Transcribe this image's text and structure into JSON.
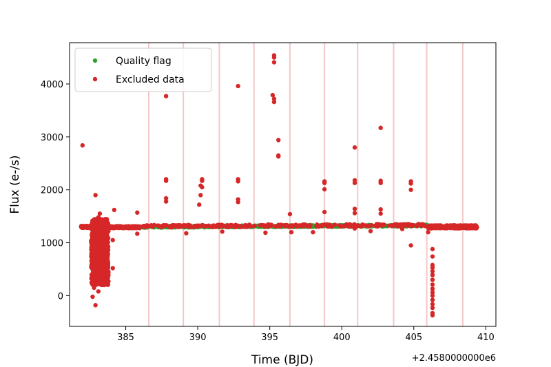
{
  "chart_data": {
    "type": "scatter",
    "title": "",
    "xlabel": "Time (BJD)",
    "ylabel": "Flux (e-/s)",
    "x_offset_label": "+2.4580000000e6",
    "xlim": [
      381.1,
      410.7
    ],
    "ylim": [
      -580,
      4780
    ],
    "x_ticks": [
      385,
      390,
      395,
      400,
      405,
      410
    ],
    "x_tick_labels": [
      "385",
      "390",
      "395",
      "400",
      "405",
      "410"
    ],
    "y_ticks": [
      0,
      1000,
      2000,
      3000,
      4000
    ],
    "y_tick_labels": [
      "0",
      "1000",
      "2000",
      "3000",
      "4000"
    ],
    "grid": false,
    "legend_placement": "upper-left",
    "colors": {
      "quality": "#2ca02c",
      "excluded": "#d62728",
      "vlines": "#f4c7c8"
    },
    "vertical_lines_x": [
      386.6,
      389.0,
      391.5,
      393.9,
      396.4,
      398.8,
      401.1,
      403.6,
      405.9,
      408.4
    ],
    "quality_band": {
      "x_start": 386.0,
      "x_end": 406.0,
      "y_start": 1290,
      "y_end": 1340
    },
    "series": [
      {
        "name": "Quality flag",
        "color": "#2ca02c",
        "points": [
          [
            386.0,
            1300
          ],
          [
            386.5,
            1302
          ],
          [
            387.0,
            1305
          ],
          [
            387.5,
            1303
          ],
          [
            388.0,
            1306
          ],
          [
            388.5,
            1304
          ],
          [
            389.0,
            1306
          ],
          [
            389.5,
            1307
          ],
          [
            390.0,
            1306
          ],
          [
            390.5,
            1308
          ],
          [
            391.0,
            1309
          ],
          [
            391.5,
            1308
          ],
          [
            392.0,
            1310
          ],
          [
            392.5,
            1311
          ],
          [
            393.0,
            1312
          ],
          [
            393.5,
            1311
          ],
          [
            394.0,
            1313
          ],
          [
            394.5,
            1314
          ],
          [
            395.0,
            1314
          ],
          [
            395.5,
            1315
          ],
          [
            396.0,
            1316
          ],
          [
            396.5,
            1317
          ],
          [
            397.0,
            1318
          ],
          [
            397.5,
            1318
          ],
          [
            398.0,
            1319
          ],
          [
            398.5,
            1320
          ],
          [
            399.0,
            1321
          ],
          [
            399.5,
            1322
          ],
          [
            400.0,
            1322
          ],
          [
            400.5,
            1323
          ],
          [
            401.0,
            1323
          ],
          [
            401.5,
            1324
          ],
          [
            402.0,
            1325
          ],
          [
            402.5,
            1325
          ],
          [
            403.0,
            1326
          ],
          [
            403.5,
            1326
          ],
          [
            404.0,
            1327
          ],
          [
            404.5,
            1327
          ],
          [
            405.0,
            1327
          ],
          [
            405.5,
            1326
          ],
          [
            406.0,
            1325
          ]
        ]
      },
      {
        "name": "Excluded data",
        "color": "#d62728",
        "points": [
          [
            382.0,
            2840
          ],
          [
            382.9,
            1900
          ],
          [
            383.2,
            1550
          ],
          [
            383.1,
            1480
          ],
          [
            383.5,
            1350
          ],
          [
            382.8,
            1200
          ],
          [
            383.0,
            1100
          ],
          [
            383.3,
            1000
          ],
          [
            382.9,
            900
          ],
          [
            383.6,
            850
          ],
          [
            383.2,
            800
          ],
          [
            382.8,
            700
          ],
          [
            383.4,
            650
          ],
          [
            383.1,
            600
          ],
          [
            383.7,
            560
          ],
          [
            382.9,
            500
          ],
          [
            383.5,
            450
          ],
          [
            383.0,
            400
          ],
          [
            383.3,
            350
          ],
          [
            382.8,
            280
          ],
          [
            383.2,
            250
          ],
          [
            383.5,
            200
          ],
          [
            382.8,
            150
          ],
          [
            382.9,
            -180
          ],
          [
            382.7,
            -20
          ],
          [
            383.1,
            80
          ],
          [
            384.2,
            1620
          ],
          [
            384.1,
            1050
          ],
          [
            384.1,
            520
          ],
          [
            385.8,
            1570
          ],
          [
            385.8,
            1170
          ],
          [
            387.8,
            3770
          ],
          [
            387.8,
            2200
          ],
          [
            387.8,
            2170
          ],
          [
            387.8,
            1840
          ],
          [
            387.8,
            1780
          ],
          [
            389.2,
            1180
          ],
          [
            390.3,
            2200
          ],
          [
            390.3,
            2170
          ],
          [
            390.2,
            2080
          ],
          [
            390.3,
            2050
          ],
          [
            390.2,
            1900
          ],
          [
            390.1,
            1720
          ],
          [
            391.7,
            1210
          ],
          [
            392.8,
            3960
          ],
          [
            392.8,
            2200
          ],
          [
            392.8,
            2160
          ],
          [
            392.8,
            1820
          ],
          [
            392.8,
            1770
          ],
          [
            394.7,
            1190
          ],
          [
            395.3,
            4540
          ],
          [
            395.3,
            4500
          ],
          [
            395.3,
            4410
          ],
          [
            395.2,
            3790
          ],
          [
            395.3,
            3720
          ],
          [
            395.3,
            3660
          ],
          [
            395.6,
            2940
          ],
          [
            395.6,
            2650
          ],
          [
            395.6,
            2630
          ],
          [
            396.4,
            1540
          ],
          [
            396.5,
            1200
          ],
          [
            398.0,
            1200
          ],
          [
            398.8,
            2160
          ],
          [
            398.8,
            2130
          ],
          [
            398.8,
            2010
          ],
          [
            398.8,
            1580
          ],
          [
            400.9,
            2800
          ],
          [
            400.9,
            2180
          ],
          [
            400.9,
            2130
          ],
          [
            400.9,
            1640
          ],
          [
            400.9,
            1560
          ],
          [
            400.9,
            1270
          ],
          [
            402.7,
            3170
          ],
          [
            402.7,
            2170
          ],
          [
            402.7,
            2130
          ],
          [
            402.7,
            1630
          ],
          [
            402.7,
            1550
          ],
          [
            402.0,
            1220
          ],
          [
            404.8,
            2160
          ],
          [
            404.8,
            2120
          ],
          [
            404.8,
            2000
          ],
          [
            404.8,
            950
          ],
          [
            404.2,
            1260
          ],
          [
            406.3,
            880
          ],
          [
            406.3,
            740
          ],
          [
            406.3,
            580
          ],
          [
            406.3,
            530
          ],
          [
            406.3,
            460
          ],
          [
            406.3,
            390
          ],
          [
            406.3,
            300
          ],
          [
            406.3,
            210
          ],
          [
            406.3,
            130
          ],
          [
            406.3,
            60
          ],
          [
            406.3,
            0
          ],
          [
            406.3,
            -80
          ],
          [
            406.3,
            -160
          ],
          [
            406.3,
            -230
          ],
          [
            406.3,
            -330
          ],
          [
            406.3,
            -370
          ],
          [
            406.0,
            1200
          ]
        ]
      }
    ],
    "excluded_segments": [
      {
        "x_start": 381.9,
        "x_end": 382.6,
        "y_base": 1300,
        "y_var": 20
      },
      {
        "x_start": 383.8,
        "x_end": 386.0,
        "y_base": 1295,
        "y_var": 18
      },
      {
        "x_start": 386.0,
        "x_end": 406.0,
        "y_base": 1312,
        "y_var": 22,
        "sparse": true
      },
      {
        "x_start": 406.0,
        "x_end": 409.4,
        "y_base": 1300,
        "y_var": 28
      }
    ],
    "excluded_scatter_region": {
      "x_start": 382.6,
      "x_end": 383.8,
      "y_min": 200,
      "y_max": 1450
    }
  }
}
